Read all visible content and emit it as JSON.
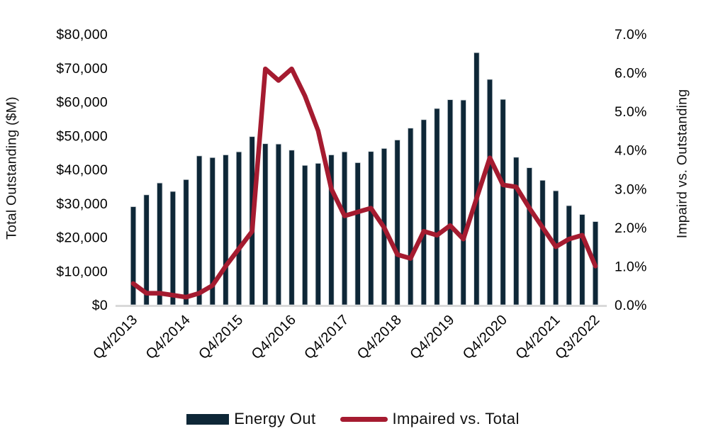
{
  "colors": {
    "bar": "#0e2737",
    "bar_border": "#d3d8dc",
    "line": "#a51b30",
    "axis_line": "#d9d9d9",
    "text": "#000000",
    "background": "#ffffff"
  },
  "chart_data": {
    "type": "combo-bar-line",
    "title": "",
    "grid": false,
    "legend_position": "bottom",
    "categories": [
      "Q4/2013",
      "Q1/2014",
      "Q2/2014",
      "Q3/2014",
      "Q4/2014",
      "Q1/2015",
      "Q2/2015",
      "Q3/2015",
      "Q4/2015",
      "Q1/2016",
      "Q2/2016",
      "Q3/2016",
      "Q4/2016",
      "Q1/2017",
      "Q2/2017",
      "Q3/2017",
      "Q4/2017",
      "Q1/2018",
      "Q2/2018",
      "Q3/2018",
      "Q4/2018",
      "Q1/2019",
      "Q2/2019",
      "Q3/2019",
      "Q4/2019",
      "Q1/2020",
      "Q2/2020",
      "Q3/2020",
      "Q4/2020",
      "Q1/2021",
      "Q2/2021",
      "Q3/2021",
      "Q4/2021",
      "Q1/2022",
      "Q2/2022",
      "Q3/2022"
    ],
    "series": [
      {
        "name": "Energy Out",
        "type": "bar",
        "axis": "left",
        "color": "#0e2737",
        "values": [
          29000,
          32500,
          36000,
          33500,
          37000,
          44000,
          43500,
          44300,
          45200,
          49700,
          47600,
          47500,
          45700,
          41200,
          41800,
          44300,
          45200,
          42000,
          45300,
          46200,
          48700,
          52200,
          54700,
          58000,
          60600,
          60500,
          74500,
          66600,
          60700,
          43600,
          40500,
          36800,
          33700,
          29300,
          26700,
          24600
        ]
      },
      {
        "name": "Impaired vs. Total",
        "type": "line",
        "axis": "right",
        "color": "#a51b30",
        "values": [
          0.55,
          0.3,
          0.3,
          0.25,
          0.2,
          0.3,
          0.5,
          1.0,
          1.45,
          1.9,
          6.1,
          5.8,
          6.1,
          5.4,
          4.5,
          3.0,
          2.3,
          2.4,
          2.5,
          2.0,
          1.3,
          1.2,
          1.9,
          1.8,
          2.05,
          1.7,
          2.75,
          3.8,
          3.1,
          3.05,
          2.5,
          2.0,
          1.5,
          1.7,
          1.8,
          1.0
        ]
      }
    ],
    "left_axis": {
      "title": "Total Outstanding ($M)",
      "min": 0,
      "max": 80000,
      "step": 10000,
      "tick_labels": [
        "$0",
        "$10,000",
        "$20,000",
        "$30,000",
        "$40,000",
        "$50,000",
        "$60,000",
        "$70,000",
        "$80,000"
      ],
      "tick_values": [
        0,
        10000,
        20000,
        30000,
        40000,
        50000,
        60000,
        70000,
        80000
      ]
    },
    "right_axis": {
      "title": "Impaird vs. Outstanding",
      "min": 0,
      "max": 7,
      "step": 1,
      "tick_labels": [
        "0.0%",
        "1.0%",
        "2.0%",
        "3.0%",
        "4.0%",
        "5.0%",
        "6.0%",
        "7.0%"
      ],
      "tick_values": [
        0,
        1,
        2,
        3,
        4,
        5,
        6,
        7
      ]
    },
    "x_axis": {
      "ticks": [
        {
          "label": "Q4/2013",
          "index": 0
        },
        {
          "label": "Q4/2014",
          "index": 4
        },
        {
          "label": "Q4/2015",
          "index": 8
        },
        {
          "label": "Q4/2016",
          "index": 12
        },
        {
          "label": "Q4/2017",
          "index": 16
        },
        {
          "label": "Q4/2018",
          "index": 20
        },
        {
          "label": "Q4/2019",
          "index": 24
        },
        {
          "label": "Q4/2020",
          "index": 28
        },
        {
          "label": "Q4/2021",
          "index": 32
        },
        {
          "label": "Q3/2022",
          "index": 35
        }
      ]
    },
    "legend": [
      {
        "label": "Energy Out",
        "swatch": "bar"
      },
      {
        "label": "Impaired vs. Total",
        "swatch": "line"
      }
    ]
  }
}
